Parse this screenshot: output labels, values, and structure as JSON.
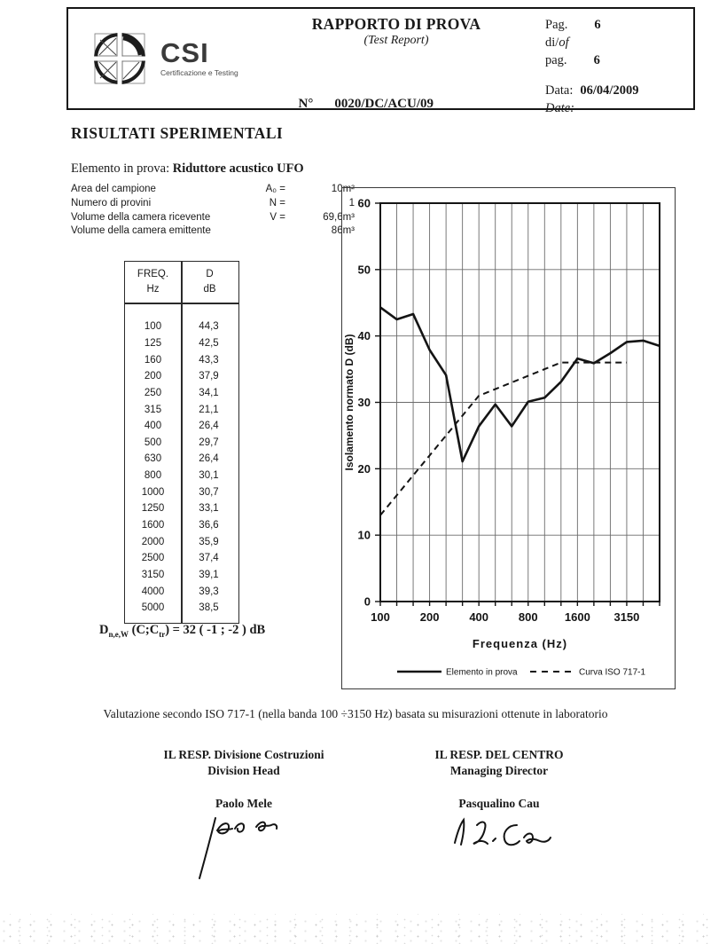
{
  "header": {
    "logo_name": "CSI",
    "logo_tagline": "Certificazione e Testing",
    "title": "RAPPORTO DI PROVA",
    "subtitle": "(Test Report)",
    "number_label": "N°",
    "number": "0020/DC/ACU/09",
    "page_label": "Pag.",
    "page": "6",
    "of_prefix": "di/",
    "of_word": "of",
    "of_page_label": "pag.",
    "total_pages": "6",
    "date_label": "Data:",
    "date": "06/04/2009",
    "date_label_en": "Date:"
  },
  "section_title": "RISULTATI SPERIMENTALI",
  "specimen": {
    "label": "Elemento in prova: ",
    "value": "Riduttore acustico UFO"
  },
  "parameters": [
    {
      "label": "Area del campione",
      "symbol": "A₀ =",
      "value": "10m²"
    },
    {
      "label": "Numero di provini",
      "symbol": "N =",
      "value": "1"
    },
    {
      "label": "Volume della camera ricevente",
      "symbol": "V =",
      "value": "69,6m³"
    },
    {
      "label": "Volume della camera emittente",
      "symbol": "",
      "value": "86m³"
    }
  ],
  "table": {
    "col1_title": "FREQ.",
    "col1_unit": "Hz",
    "col2_title": "D",
    "col2_unit": "dB",
    "rows": [
      [
        "100",
        "44,3"
      ],
      [
        "125",
        "42,5"
      ],
      [
        "160",
        "43,3"
      ],
      [
        "200",
        "37,9"
      ],
      [
        "250",
        "34,1"
      ],
      [
        "315",
        "21,1"
      ],
      [
        "400",
        "26,4"
      ],
      [
        "500",
        "29,7"
      ],
      [
        "630",
        "26,4"
      ],
      [
        "800",
        "30,1"
      ],
      [
        "1000",
        "30,7"
      ],
      [
        "1250",
        "33,1"
      ],
      [
        "1600",
        "36,6"
      ],
      [
        "2000",
        "35,9"
      ],
      [
        "2500",
        "37,4"
      ],
      [
        "3150",
        "39,1"
      ],
      [
        "4000",
        "39,3"
      ],
      [
        "5000",
        "38,5"
      ]
    ]
  },
  "formula": {
    "base": "D",
    "base_sub": "n,e,W",
    "mid": " (C;C",
    "mid_sub": "tr",
    "rest": ") = 32 ( -1 ; -2 ) dB"
  },
  "chart_data": {
    "type": "line",
    "x_bands": [
      100,
      125,
      160,
      200,
      250,
      315,
      400,
      500,
      630,
      800,
      1000,
      1250,
      1600,
      2000,
      2500,
      3150,
      4000,
      5000
    ],
    "series": [
      {
        "name": "Elemento in prova",
        "style": "solid",
        "values": [
          44.3,
          42.5,
          43.3,
          37.9,
          34.1,
          21.1,
          26.4,
          29.7,
          26.4,
          30.1,
          30.7,
          33.1,
          36.6,
          35.9,
          37.4,
          39.1,
          39.3,
          38.5
        ]
      },
      {
        "name": "Curva ISO 717-1",
        "style": "dashed",
        "values": [
          13,
          16,
          19,
          22,
          25,
          28,
          31,
          32,
          33,
          34,
          35,
          36,
          36,
          36,
          36,
          36
        ]
      }
    ],
    "ylabel": "Isolamento normato D (dB)",
    "xlabel": "Frequenza (Hz)",
    "ylim": [
      0,
      60
    ],
    "ytick_step": 10,
    "xtick_band_indexes": [
      0,
      3,
      6,
      9,
      12,
      15
    ],
    "xtick_labels": [
      "100",
      "200",
      "400",
      "800",
      "1600",
      "3150"
    ],
    "grid": true,
    "legend_position": "bottom",
    "line_color": "#141414",
    "grid_color": "#6b6b6b"
  },
  "evaluation_note": "Valutazione secondo ISO 717-1 (nella banda 100 ÷3150 Hz) basata su misurazioni ottenute in laboratorio",
  "signatures": [
    {
      "role_it": "IL RESP. Divisione Costruzioni",
      "role_en": "Division Head",
      "name": "Paolo Mele"
    },
    {
      "role_it": "IL RESP. DEL CENTRO",
      "role_en": "Managing Director",
      "name": "Pasqualino Cau"
    }
  ]
}
